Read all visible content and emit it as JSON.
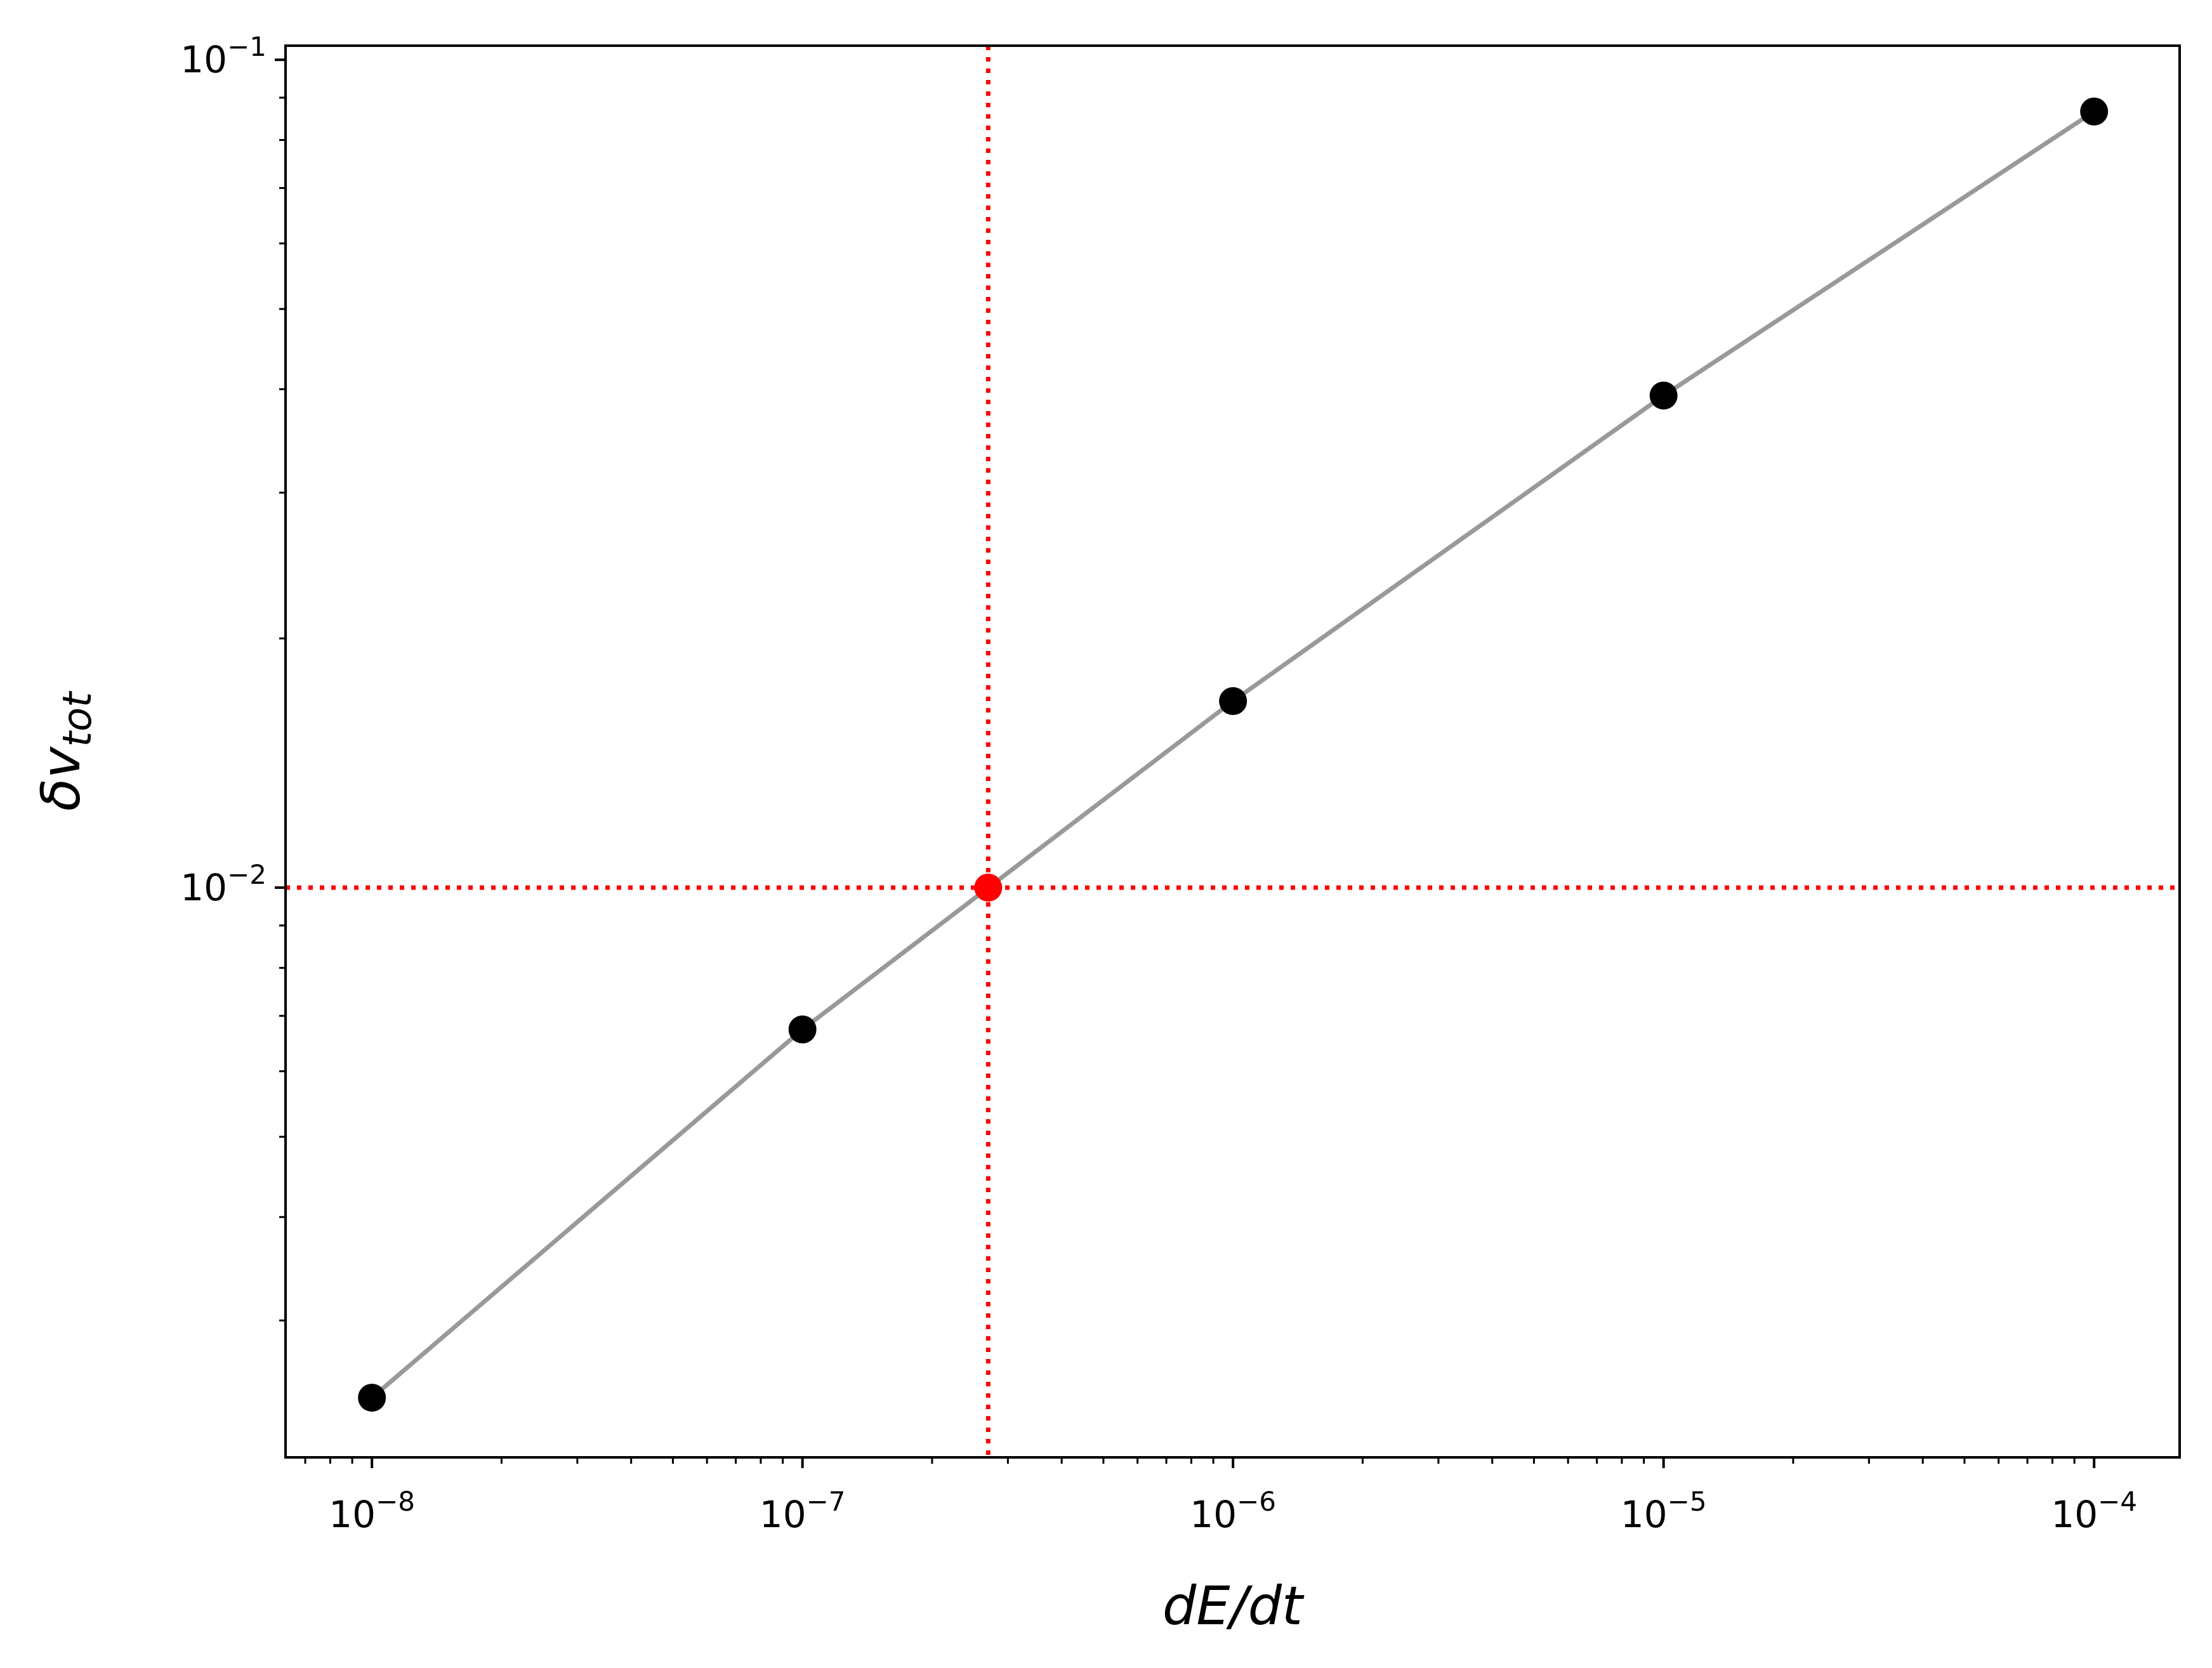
{
  "chart_data": {
    "type": "line",
    "title": "",
    "xlabel": "dE/dt",
    "ylabel": "δv_tot",
    "xscale": "log",
    "yscale": "log",
    "xlim": [
      6.3e-09,
      0.000158
    ],
    "ylim": [
      0.00205,
      0.104
    ],
    "x_ticks": [
      {
        "value": 1e-08,
        "base": "10",
        "exp": "−8"
      },
      {
        "value": 1e-07,
        "base": "10",
        "exp": "−7"
      },
      {
        "value": 1e-06,
        "base": "10",
        "exp": "−6"
      },
      {
        "value": 1e-05,
        "base": "10",
        "exp": "−5"
      },
      {
        "value": 0.0001,
        "base": "10",
        "exp": "−4"
      }
    ],
    "y_ticks": [
      {
        "value": 0.01,
        "base": "10",
        "exp": "−2"
      },
      {
        "value": 0.1,
        "base": "10",
        "exp": "−1"
      }
    ],
    "grid": false,
    "series": [
      {
        "x": [
          1e-08,
          1e-07,
          1e-06,
          1e-05,
          0.0001
        ],
        "y": [
          0.00242,
          0.00674,
          0.0168,
          0.0393,
          0.0866
        ],
        "line_color": "#999999",
        "marker_color": "#000000"
      }
    ],
    "highlight_point": {
      "x": 2.7e-07,
      "y": 0.01,
      "color": "#ff0000"
    },
    "reference_lines": [
      {
        "orientation": "vertical",
        "x": 2.7e-07,
        "style": "dotted",
        "color": "#ff0000"
      },
      {
        "orientation": "horizontal",
        "y": 0.01,
        "style": "dotted",
        "color": "#ff0000"
      }
    ]
  }
}
